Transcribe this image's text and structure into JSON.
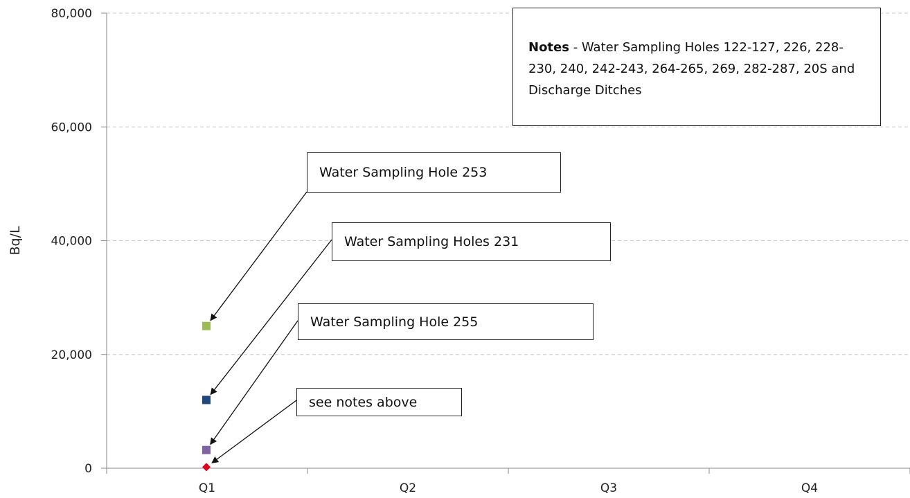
{
  "chart_data": {
    "type": "scatter",
    "title": "",
    "xlabel": "",
    "ylabel": "Bq/L",
    "categories": [
      "Q1",
      "Q2",
      "Q3",
      "Q4"
    ],
    "ylim": [
      0,
      80000
    ],
    "yticks": [
      0,
      20000,
      40000,
      60000,
      80000
    ],
    "ytick_labels": [
      "0",
      "20,000",
      "40,000",
      "60,000",
      "80,000"
    ],
    "grid": "horizontal dashed",
    "series": [
      {
        "label": "Water Sampling Hole 253",
        "x": "Q1",
        "y": 25000,
        "color": "#9BBB59",
        "marker": "square"
      },
      {
        "label": "Water Sampling Holes 231",
        "x": "Q1",
        "y": 12000,
        "color": "#1F497D",
        "marker": "square"
      },
      {
        "label": "Water Sampling Hole 255",
        "x": "Q1",
        "y": 3200,
        "color": "#8064A2",
        "marker": "square"
      },
      {
        "label": "see notes above",
        "x": "Q1",
        "y": 200,
        "color": "#E3001B",
        "marker": "diamond"
      }
    ],
    "notes": {
      "bold": "Notes",
      "text": " - Water Sampling Holes 122-127, 226, 228-230, 240, 242-243, 264-265, 269, 282-287, 20S and Discharge Ditches"
    }
  }
}
